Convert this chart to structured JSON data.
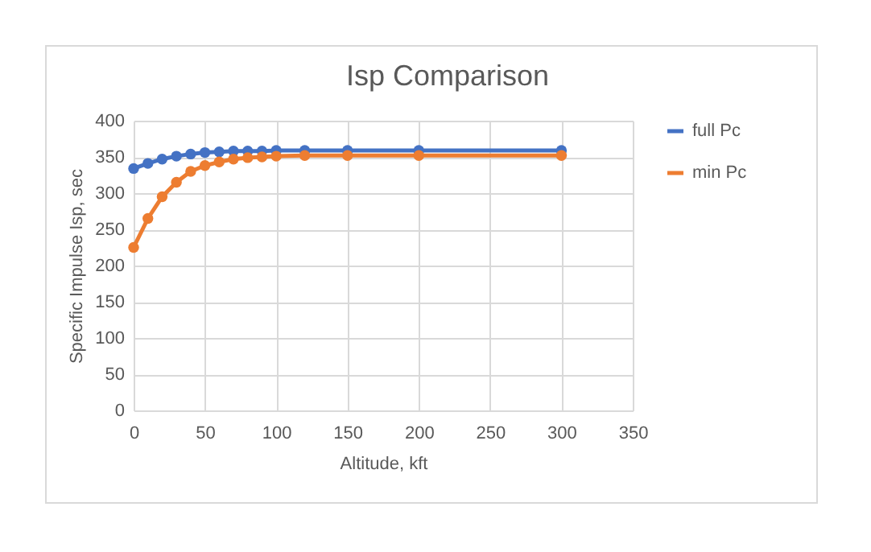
{
  "chart_data": {
    "type": "line",
    "title": "Isp Comparison",
    "xlabel": "Altitude,  kft",
    "ylabel": "Specific Impulse Isp, sec",
    "x": [
      0,
      10,
      20,
      30,
      40,
      50,
      60,
      70,
      80,
      90,
      100,
      120,
      150,
      200,
      300
    ],
    "series": [
      {
        "name": "full Pc",
        "color": "#4472c4",
        "values": [
          334,
          341,
          347,
          351,
          354,
          356,
          357,
          358,
          358,
          358,
          359,
          359,
          359,
          359,
          359
        ]
      },
      {
        "name": "min Pc",
        "color": "#ed7d31",
        "values": [
          225,
          265,
          295,
          315,
          330,
          338,
          343,
          347,
          349,
          350,
          351,
          352,
          352,
          352,
          352
        ]
      }
    ],
    "xlim": [
      0,
      350
    ],
    "xticks": [
      0,
      50,
      100,
      150,
      200,
      250,
      300,
      350
    ],
    "ylim": [
      0,
      400
    ],
    "yticks": [
      0,
      50,
      100,
      150,
      200,
      250,
      300,
      350,
      400
    ],
    "grid": true,
    "legend": "right",
    "marker": "circle",
    "line_style": "solid"
  }
}
